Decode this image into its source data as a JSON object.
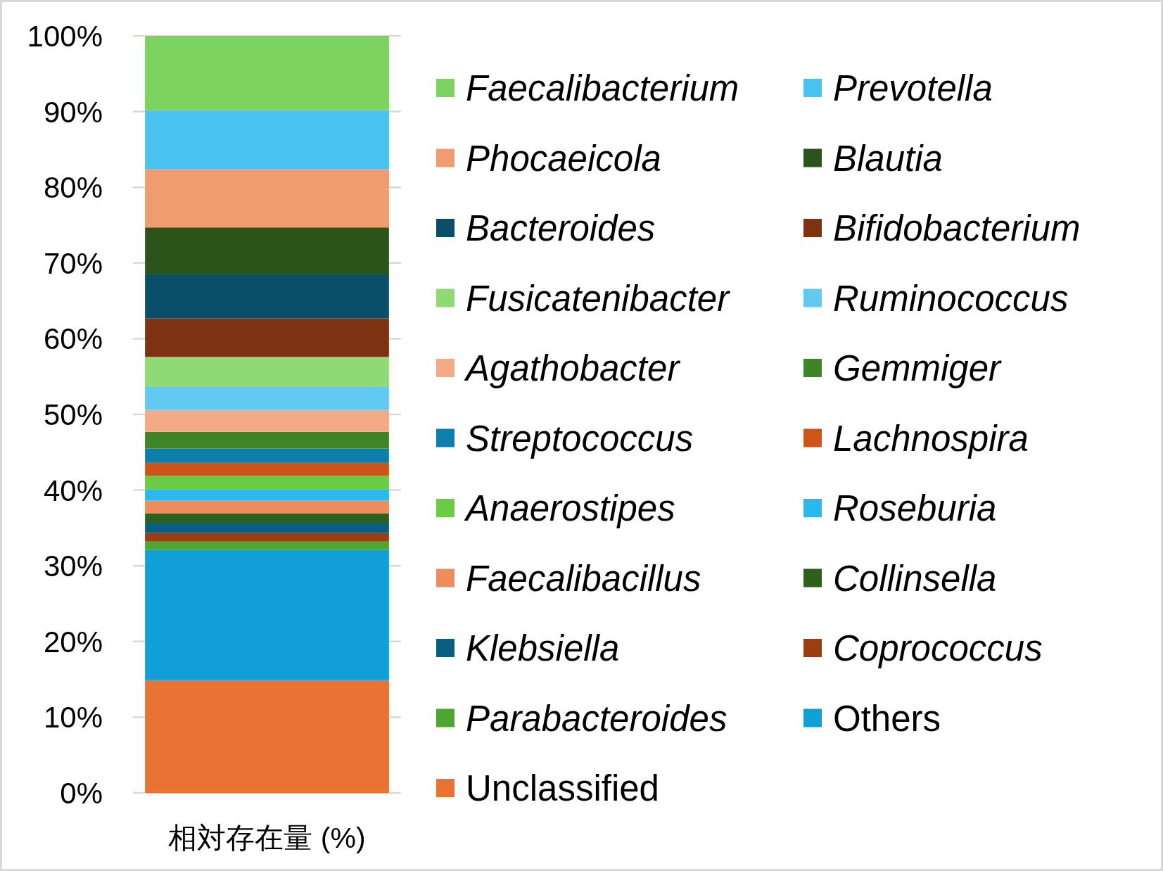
{
  "chart_data": {
    "type": "bar",
    "stacked": true,
    "categories": [
      "相対存在量 (%)"
    ],
    "ylim": [
      0,
      100
    ],
    "yticks": [
      {
        "value": 0,
        "label": "0%"
      },
      {
        "value": 10,
        "label": "10%"
      },
      {
        "value": 20,
        "label": "20%"
      },
      {
        "value": 30,
        "label": "30%"
      },
      {
        "value": 40,
        "label": "40%"
      },
      {
        "value": 50,
        "label": "50%"
      },
      {
        "value": 60,
        "label": "60%"
      },
      {
        "value": 70,
        "label": "70%"
      },
      {
        "value": 80,
        "label": "80%"
      },
      {
        "value": 90,
        "label": "90%"
      },
      {
        "value": 100,
        "label": "100%"
      }
    ],
    "grid": "y",
    "legend": "right",
    "series": [
      {
        "name": "Unclassified",
        "color": "#e87334",
        "values": [
          14.9
        ]
      },
      {
        "name": "Others",
        "color": "#109fd7",
        "values": [
          17.2
        ]
      },
      {
        "name": "*Parabacteroides*",
        "color": "#4ea631",
        "values": [
          1.1
        ]
      },
      {
        "name": "*Coprococcus*",
        "color": "#9a3f14",
        "values": [
          1.2
        ]
      },
      {
        "name": "*Klebsiella*",
        "color": "#095e81",
        "values": [
          1.2
        ]
      },
      {
        "name": "*Collinsella*",
        "color": "#2d5f1d",
        "values": [
          1.3
        ]
      },
      {
        "name": "*Faecalibacillus*",
        "color": "#ee8c5c",
        "values": [
          1.7
        ]
      },
      {
        "name": "*Roseburia*",
        "color": "#2cb8ee",
        "values": [
          1.5
        ]
      },
      {
        "name": "*Anaerostipes*",
        "color": "#6acc44",
        "values": [
          1.8
        ]
      },
      {
        "name": "*Lachnospira*",
        "color": "#cd5517",
        "values": [
          1.7
        ]
      },
      {
        "name": "*Streptococcus*",
        "color": "#0e7eac",
        "values": [
          1.9
        ]
      },
      {
        "name": "*Gemmiger*",
        "color": "#3e8428",
        "values": [
          2.2
        ]
      },
      {
        "name": "*Agathobacter*",
        "color": "#f2ab86",
        "values": [
          2.9
        ]
      },
      {
        "name": "*Ruminococcus*",
        "color": "#62caf2",
        "values": [
          3.1
        ]
      },
      {
        "name": "*Fusicatenibacter*",
        "color": "#90da76",
        "values": [
          3.9
        ]
      },
      {
        "name": "*Bifidobacterium*",
        "color": "#7d3311",
        "values": [
          5.1
        ]
      },
      {
        "name": "*Bacteroides*",
        "color": "#0a4f69",
        "values": [
          5.8
        ]
      },
      {
        "name": "*Blautia*",
        "color": "#2a5419",
        "values": [
          6.2
        ]
      },
      {
        "name": "*Phocaeicola*",
        "color": "#ef9c71",
        "values": [
          7.7
        ]
      },
      {
        "name": "*Prevotella*",
        "color": "#4ac2f0",
        "values": [
          7.8
        ]
      },
      {
        "name": "*Faecalibacterium*",
        "color": "#7dd35f",
        "values": [
          9.8
        ]
      }
    ]
  }
}
